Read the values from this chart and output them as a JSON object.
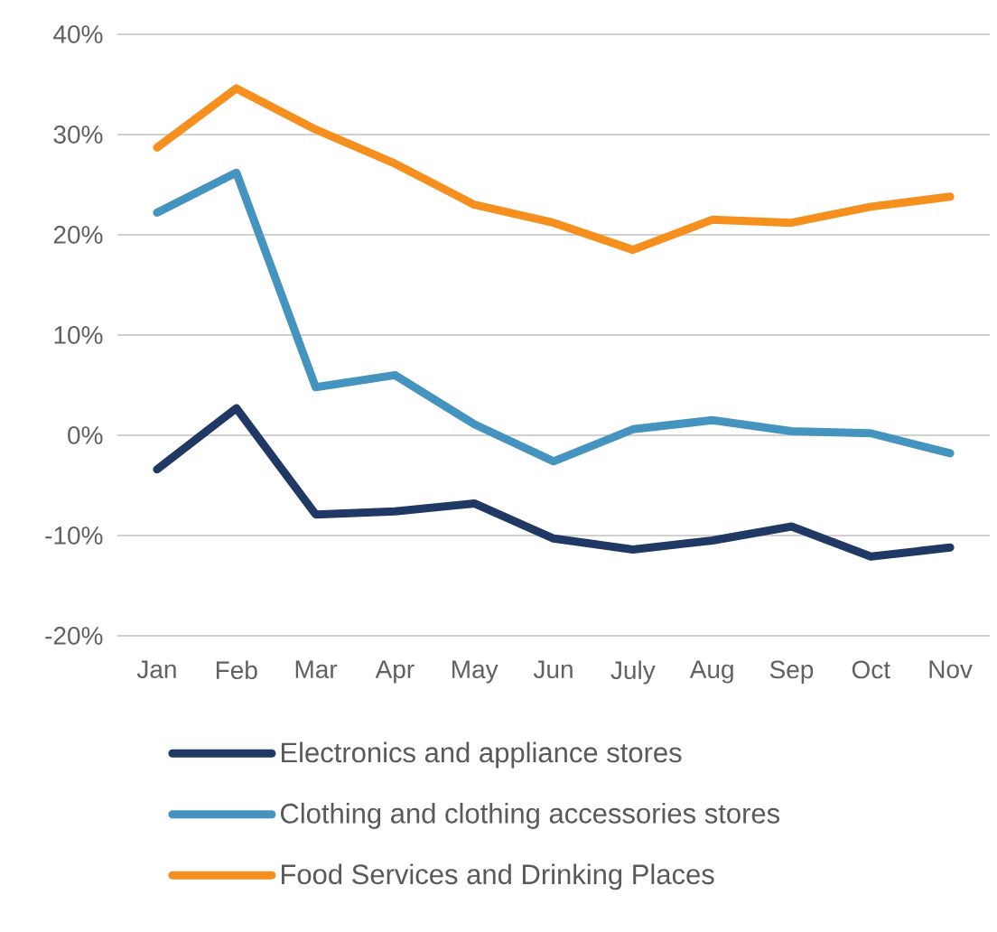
{
  "chart_data": {
    "type": "line",
    "categories": [
      "Jan",
      "Feb",
      "Mar",
      "Apr",
      "May",
      "Jun",
      "July",
      "Aug",
      "Sep",
      "Oct",
      "Nov"
    ],
    "series": [
      {
        "name": "Electronics and appliance stores",
        "color": "#1f3864",
        "values": [
          -3.4,
          2.7,
          -7.9,
          -7.6,
          -6.8,
          -10.3,
          -11.4,
          -10.5,
          -9.1,
          -12.1,
          -11.2
        ]
      },
      {
        "name": "Clothing and clothing accessories stores",
        "color": "#4594c0",
        "values": [
          22.2,
          26.2,
          4.8,
          6.0,
          1.1,
          -2.6,
          0.6,
          1.5,
          0.4,
          0.2,
          -1.8
        ]
      },
      {
        "name": "Food Services and Drinking Places",
        "color": "#f5901e",
        "values": [
          28.7,
          34.6,
          30.5,
          27.1,
          23.0,
          21.2,
          18.5,
          21.5,
          21.2,
          22.8,
          23.8
        ]
      }
    ],
    "ylim": [
      -20,
      40
    ],
    "yticks": [
      {
        "value": -20,
        "label": "-20%"
      },
      {
        "value": -10,
        "label": "-10%"
      },
      {
        "value": 0,
        "label": "0%"
      },
      {
        "value": 10,
        "label": "10%"
      },
      {
        "value": 20,
        "label": "20%"
      },
      {
        "value": 30,
        "label": "30%"
      },
      {
        "value": 40,
        "label": "40%"
      }
    ],
    "grid": "y",
    "legend": "bottom"
  }
}
